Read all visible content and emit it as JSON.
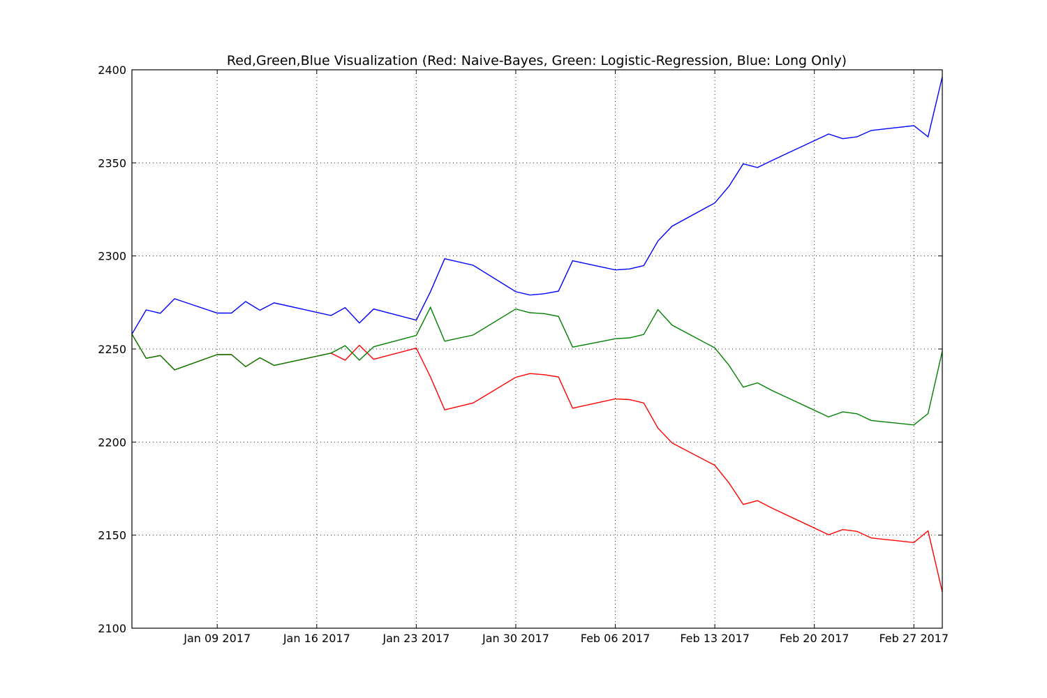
{
  "chart_data": {
    "type": "line",
    "title": "Red,Green,Blue Visualization (Red: Naive-Bayes, Green: Logistic-Regression, Blue: Long Only)",
    "xlabel": "",
    "ylabel": "",
    "ylim": [
      2100,
      2400
    ],
    "xlim": [
      "2017-01-03",
      "2017-02-28"
    ],
    "grid": true,
    "legend": "none",
    "yticks": [
      2100,
      2150,
      2200,
      2250,
      2300,
      2350,
      2400
    ],
    "xticks": [
      {
        "date": "2017-01-09",
        "label": "Jan 09 2017"
      },
      {
        "date": "2017-01-16",
        "label": "Jan 16 2017"
      },
      {
        "date": "2017-01-23",
        "label": "Jan 23 2017"
      },
      {
        "date": "2017-01-30",
        "label": "Jan 30 2017"
      },
      {
        "date": "2017-02-06",
        "label": "Feb 06 2017"
      },
      {
        "date": "2017-02-13",
        "label": "Feb 13 2017"
      },
      {
        "date": "2017-02-20",
        "label": "Feb 20 2017"
      },
      {
        "date": "2017-02-27",
        "label": "Feb 27 2017"
      }
    ],
    "x": [
      "2017-01-03",
      "2017-01-04",
      "2017-01-05",
      "2017-01-06",
      "2017-01-09",
      "2017-01-10",
      "2017-01-11",
      "2017-01-12",
      "2017-01-13",
      "2017-01-17",
      "2017-01-18",
      "2017-01-19",
      "2017-01-20",
      "2017-01-23",
      "2017-01-24",
      "2017-01-25",
      "2017-01-27",
      "2017-01-30",
      "2017-01-31",
      "2017-02-01",
      "2017-02-02",
      "2017-02-03",
      "2017-02-06",
      "2017-02-07",
      "2017-02-08",
      "2017-02-09",
      "2017-02-10",
      "2017-02-13",
      "2017-02-14",
      "2017-02-15",
      "2017-02-16",
      "2017-02-17",
      "2017-02-21",
      "2017-02-22",
      "2017-02-23",
      "2017-02-24",
      "2017-02-27",
      "2017-02-28",
      "2017-03-01"
    ],
    "series": [
      {
        "color": "#ff0000",
        "values": [
          2258,
          2245,
          2246.5,
          2238.8,
          2247,
          2247,
          2240.5,
          2245.3,
          2241.2,
          2247.8,
          2244,
          2252,
          2244.5,
          2250.5,
          2235,
          2217.3,
          2221,
          2234.8,
          2236.8,
          2236.2,
          2235,
          2218.2,
          2223.2,
          2222.8,
          2221,
          2207.5,
          2199.5,
          2187.5,
          2178,
          2166.5,
          2168.5,
          2164.6,
          2150.2,
          2153,
          2152,
          2148.5,
          2146,
          2152.3,
          2119.5
        ]
      },
      {
        "color": "#008000",
        "values": [
          2258,
          2245,
          2246.5,
          2238.8,
          2247,
          2247,
          2240.5,
          2245.3,
          2241.2,
          2247.8,
          2251.8,
          2244,
          2251.2,
          2257.3,
          2272.4,
          2254.2,
          2257.5,
          2271.5,
          2269.5,
          2269,
          2267.5,
          2251,
          2255.5,
          2256,
          2257.8,
          2271.2,
          2262.8,
          2250.6,
          2241.2,
          2229.5,
          2231.8,
          2227.8,
          2213.5,
          2216.2,
          2215.2,
          2211.6,
          2209.2,
          2215.3,
          2248.8
        ]
      },
      {
        "color": "#0000ff",
        "values": [
          2258,
          2271,
          2269.2,
          2277,
          2269.3,
          2269.3,
          2275.5,
          2270.8,
          2274.8,
          2268,
          2272.2,
          2264,
          2271.5,
          2265.5,
          2280.8,
          2298.5,
          2295,
          2280.8,
          2279,
          2279.7,
          2281.1,
          2297.4,
          2292.5,
          2293,
          2294.8,
          2308,
          2316,
          2328.5,
          2337.5,
          2349.5,
          2347.5,
          2351.2,
          2365.5,
          2363,
          2364,
          2367.4,
          2370,
          2364,
          2396.2
        ]
      }
    ]
  }
}
